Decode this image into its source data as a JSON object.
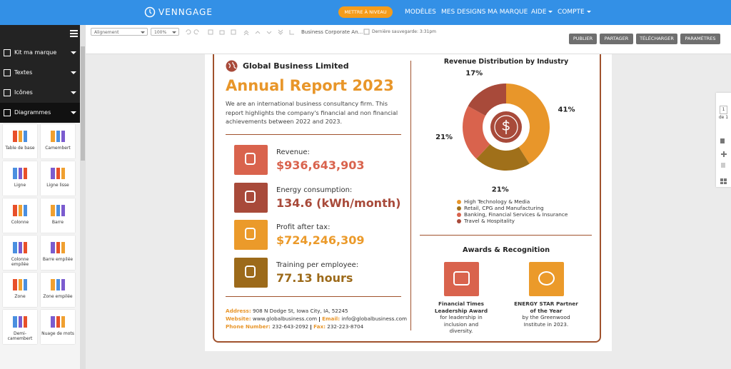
{
  "topbar": {
    "logo": "VENNGAGE",
    "upgrade": "METTRE À NIVEAU",
    "menu": [
      "MODÈLES",
      "MES DESIGNS",
      "MA MARQUE",
      "AIDE",
      "COMPTE"
    ]
  },
  "sidebar": {
    "sections": [
      "Kit ma marque",
      "Textes",
      "Icônes",
      "Diagrammes"
    ],
    "charts": [
      "Table de base",
      "Camembert",
      "Ligne",
      "Ligne lisse",
      "Colonne",
      "Barre",
      "Colonne empilée",
      "Barre empilée",
      "Zone",
      "Zone empilée",
      "Demi-camembert",
      "Nuage de mots"
    ]
  },
  "toolbar": {
    "align": "Alignement",
    "zoom": "100%",
    "doc_name": "Business Corporate An...",
    "saved": "Dernière sauvegarde: 3:31pm",
    "buttons": [
      "PUBLIER",
      "PARTAGER",
      "TÉLÉCHARGER",
      "PARAMÈTRES"
    ]
  },
  "pager": {
    "page": "1",
    "of": "de 1"
  },
  "document": {
    "company": "Global Business Limited",
    "title": "Annual Report 2023",
    "intro": "We are an international business consultancy firm. This report highlights the company's financial and non financial achievements between 2022 and 2023.",
    "stats": [
      {
        "label": "Revenue:",
        "value": "$936,643,903"
      },
      {
        "label": "Energy consumption:",
        "value": "134.6 (kWh/month)"
      },
      {
        "label": "Profit after tax:",
        "value": "$724,246,309"
      },
      {
        "label": "Training per employee:",
        "value": "77.13 hours"
      }
    ],
    "contact": [
      [
        {
          "label": "Address:",
          "text": "908 N Dodge St, Iowa City, IA, 52245"
        }
      ],
      [
        {
          "label": "Website:",
          "text": "www.globalbusiness.com"
        },
        {
          "label": "Email:",
          "text": "info@globalbusiness.com"
        }
      ],
      [
        {
          "label": "Phone Number:",
          "text": "232-643-2092"
        },
        {
          "label": "Fax:",
          "text": "232-223-8704"
        }
      ]
    ],
    "chart": {
      "type": "pie",
      "title": "Revenue Distribution by Industry",
      "categories": [
        "High Technology & Media",
        "Retail, CPG and Manufacturing",
        "Banking, Financial Services & Insurance",
        "Travel & Hospitality"
      ],
      "values": [
        41,
        21,
        21,
        17
      ],
      "value_labels": [
        "41%",
        "21%",
        "21%",
        "17%"
      ],
      "colors": [
        "#e8962a",
        "#a0701a",
        "#d9634d",
        "#a84a3a"
      ],
      "donut": true
    },
    "awards": {
      "title": "Awards & Recognition",
      "items": [
        {
          "title": "Financial Times Leadership Award",
          "text": "for leadership in inclusion and diversity."
        },
        {
          "title": "ENERGY STAR Partner of the Year",
          "text": "by the Greenwood Institute in 2023."
        }
      ]
    }
  }
}
